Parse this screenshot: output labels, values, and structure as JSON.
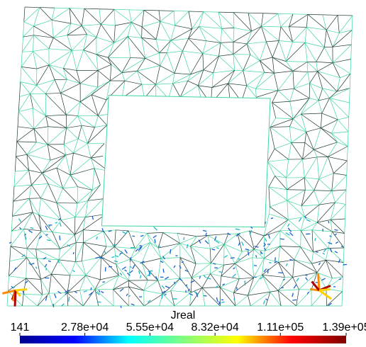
{
  "chart_data": {
    "type": "colorbar",
    "title": "Jreal",
    "clim": [
      141,
      139000
    ],
    "ticks": [
      141,
      {
        "value": 27800,
        "label": "2.78e+04"
      },
      {
        "value": 55500,
        "label": "5.55e+04"
      },
      {
        "value": 83200,
        "label": "8.32e+04"
      },
      {
        "value": 111000,
        "label": "1.11e+05"
      },
      {
        "value": 139000,
        "label": "1.39e+05"
      }
    ],
    "colormap": [
      "#00008f",
      "#0000ff",
      "#00ffff",
      "#80ff80",
      "#ffff00",
      "#ff0000",
      "#800000"
    ]
  }
}
